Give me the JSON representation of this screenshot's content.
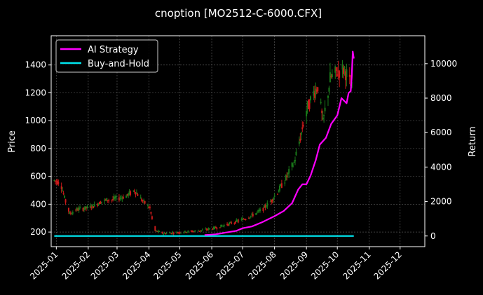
{
  "chart_data": {
    "type": "candlestick+line",
    "title": "cnoption [MO2512-C-6000.CFX]",
    "ylabel": "Price",
    "y2label": "Return",
    "x_ticks": [
      "2025-01",
      "2025-02",
      "2025-03",
      "2025-04",
      "2025-05",
      "2025-06",
      "2025-07",
      "2025-08",
      "2025-09",
      "2025-10",
      "2025-11",
      "2025-12"
    ],
    "xlim": [
      "2024-12-27",
      "2025-12-25"
    ],
    "ylim": [
      95,
      1610
    ],
    "y_ticks": [
      200,
      400,
      600,
      800,
      1000,
      1200,
      1400
    ],
    "y2lim": [
      -620,
      11620
    ],
    "y2_ticks": [
      0,
      2000,
      4000,
      6000,
      8000,
      10000
    ],
    "grid": true,
    "legend_position": "upper-left",
    "up_color": "#1a7a1a",
    "down_color": "#cc1a1a",
    "price_anchors": [
      [
        "2024-12-30",
        570
      ],
      [
        "2025-01-05",
        560
      ],
      [
        "2025-01-09",
        440
      ],
      [
        "2025-01-14",
        330
      ],
      [
        "2025-01-20",
        360
      ],
      [
        "2025-02-01",
        375
      ],
      [
        "2025-02-07",
        390
      ],
      [
        "2025-02-13",
        420
      ],
      [
        "2025-02-20",
        430
      ],
      [
        "2025-03-01",
        440
      ],
      [
        "2025-03-10",
        460
      ],
      [
        "2025-03-18",
        500
      ],
      [
        "2025-03-25",
        430
      ],
      [
        "2025-04-02",
        370
      ],
      [
        "2025-04-06",
        210
      ],
      [
        "2025-04-15",
        190
      ],
      [
        "2025-05-05",
        200
      ],
      [
        "2025-05-20",
        210
      ],
      [
        "2025-06-05",
        230
      ],
      [
        "2025-06-18",
        260
      ],
      [
        "2025-07-01",
        290
      ],
      [
        "2025-07-10",
        320
      ],
      [
        "2025-07-20",
        360
      ],
      [
        "2025-07-28",
        420
      ],
      [
        "2025-08-05",
        500
      ],
      [
        "2025-08-13",
        600
      ],
      [
        "2025-08-20",
        700
      ],
      [
        "2025-08-26",
        880
      ],
      [
        "2025-09-01",
        1080
      ],
      [
        "2025-09-08",
        1200
      ],
      [
        "2025-09-12",
        1250
      ],
      [
        "2025-09-17",
        980
      ],
      [
        "2025-09-24",
        1300
      ],
      [
        "2025-10-02",
        1360
      ],
      [
        "2025-10-08",
        1370
      ],
      [
        "2025-10-15",
        1230
      ]
    ],
    "series": [
      {
        "name": "AI Strategy",
        "color": "#ff00ff",
        "points": [
          [
            "2025-05-25",
            50
          ],
          [
            "2025-06-05",
            100
          ],
          [
            "2025-06-15",
            200
          ],
          [
            "2025-06-25",
            300
          ],
          [
            "2025-07-01",
            450
          ],
          [
            "2025-07-10",
            550
          ],
          [
            "2025-07-20",
            800
          ],
          [
            "2025-08-01",
            1150
          ],
          [
            "2025-08-10",
            1450
          ],
          [
            "2025-08-18",
            1900
          ],
          [
            "2025-08-24",
            2700
          ],
          [
            "2025-08-28",
            3000
          ],
          [
            "2025-09-01",
            3000
          ],
          [
            "2025-09-05",
            3500
          ],
          [
            "2025-09-10",
            4400
          ],
          [
            "2025-09-14",
            5300
          ],
          [
            "2025-09-20",
            5700
          ],
          [
            "2025-09-25",
            6500
          ],
          [
            "2025-10-01",
            7000
          ],
          [
            "2025-10-05",
            8000
          ],
          [
            "2025-10-10",
            7700
          ],
          [
            "2025-10-12",
            8300
          ],
          [
            "2025-10-14",
            8400
          ],
          [
            "2025-10-15",
            9200
          ],
          [
            "2025-10-16",
            10700
          ],
          [
            "2025-10-17",
            10300
          ]
        ]
      },
      {
        "name": "Buy-and-Hold",
        "color": "#00e5ee",
        "points": [
          [
            "2024-12-30",
            0
          ],
          [
            "2025-10-17",
            0
          ]
        ]
      }
    ]
  }
}
